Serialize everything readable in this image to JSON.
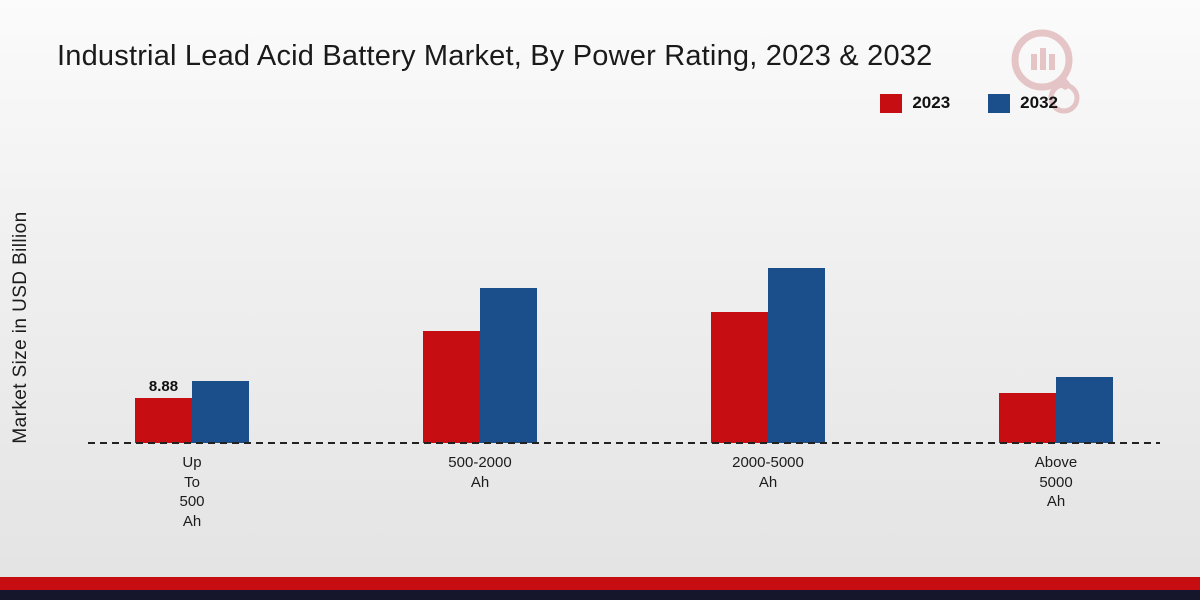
{
  "chart_data": {
    "type": "bar",
    "title": "Industrial Lead Acid Battery Market, By Power Rating, 2023 & 2032",
    "ylabel": "Market Size in USD Billion",
    "categories": [
      [
        "Up",
        "To",
        "500",
        "Ah"
      ],
      [
        "500-2000",
        "Ah"
      ],
      [
        "2000-5000",
        "Ah"
      ],
      [
        "Above",
        "5000",
        "Ah"
      ]
    ],
    "series": [
      {
        "name": "2023",
        "color": "#c50d12",
        "values": [
          8.88,
          22.1,
          25.8,
          9.9
        ],
        "value_labels": [
          "8.88",
          "",
          "",
          ""
        ]
      },
      {
        "name": "2032",
        "color": "#1b4f8c",
        "values": [
          12.3,
          30.6,
          34.5,
          13.0
        ],
        "value_labels": [
          "",
          "",
          "",
          ""
        ]
      }
    ],
    "ylim": [
      0,
      40
    ],
    "grid": false,
    "legend_position": "top-right",
    "baseline_style": "dashed",
    "axes_visible": false
  },
  "footer": {
    "accent_color": "#c50d12",
    "dark_color": "#15152b"
  },
  "watermark": {
    "icon": "magnifier-logo",
    "color": "#cf878b"
  }
}
